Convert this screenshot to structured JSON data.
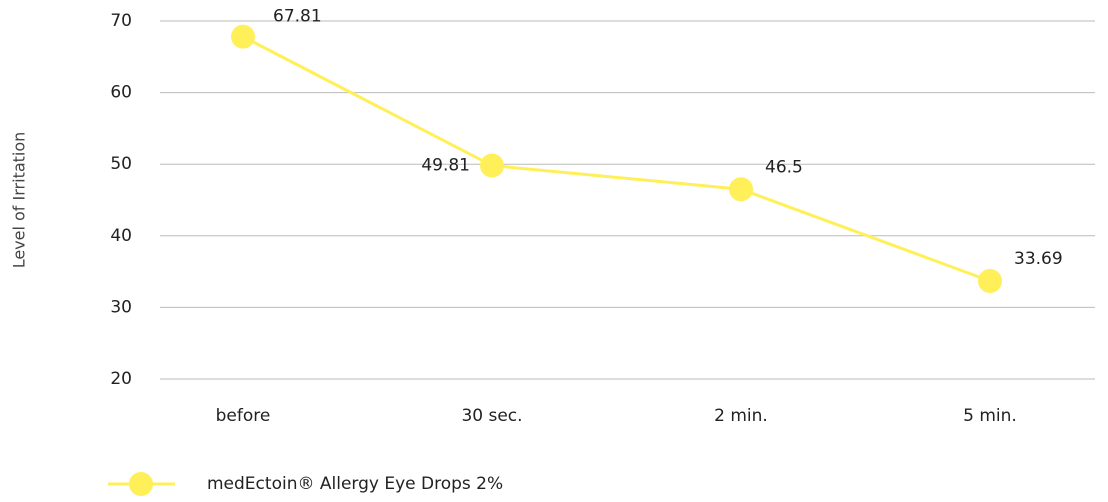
{
  "chart_data": {
    "type": "line",
    "ylabel": "Level of Irritation",
    "categories": [
      "before",
      "30 sec.",
      "2 min.",
      "5 min."
    ],
    "series": [
      {
        "name": "medEctoin® Allergy Eye Drops 2%",
        "color": "#fff05a",
        "values": [
          67.81,
          49.81,
          46.5,
          33.69
        ]
      }
    ],
    "ylim": [
      20,
      70
    ],
    "yticks": [
      20,
      30,
      40,
      50,
      60,
      70
    ],
    "grid": true,
    "legend": "bottom-left"
  }
}
